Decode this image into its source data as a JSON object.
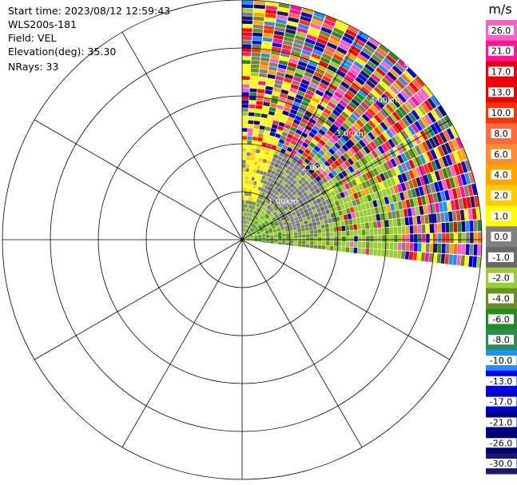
{
  "info": {
    "start_time": "Start time: 2023/08/12 12:59:43",
    "station": "WLS200s-181",
    "field": "Field: VEL",
    "elevation": "Elevation(deg): 35.30",
    "nrays": "NRays: 33"
  },
  "chart_data": {
    "type": "heatmap",
    "projection": "polar-ppi",
    "field": "VEL",
    "unit": "m/s",
    "sector_azimuth_deg": [
      0,
      97
    ],
    "nrays": 33,
    "max_range_km": 5.0,
    "range_ring_labels": [
      "1.00km",
      "2.00km",
      "3.00km",
      "4.00km",
      "5.00km"
    ],
    "colorbar": {
      "title": "m/s",
      "ticks": [
        "26.0",
        "21.0",
        "17.0",
        "13.0",
        "10.0",
        "8.0",
        "6.0",
        "4.0",
        "2.0",
        "1.0",
        "0.0",
        "-1.0",
        "-2.0",
        "-4.0",
        "-6.0",
        "-8.0",
        "-10.0",
        "-13.0",
        "-17.0",
        "-21.0",
        "-26.0",
        "-30.0"
      ],
      "colors": [
        "#ff5fc8",
        "#ff1493",
        "#e8000f",
        "#f00000",
        "#ff3300",
        "#ff6a3c",
        "#ff8c33",
        "#ffa500",
        "#ffcc00",
        "#ffff00",
        "#808080",
        "#696969",
        "#9acd32",
        "#6b8e23",
        "#228b22",
        "#2e8b57",
        "#1e90ff",
        "#0000ff",
        "#0000cd",
        "#00008b",
        "#000070",
        "#191970"
      ]
    },
    "velocity_pattern": [
      {
        "range_km": [
          0.0,
          0.8
        ],
        "dominant": "-2.0 to -6.0 (green), 0.0 (gray)"
      },
      {
        "range_km": [
          0.8,
          2.0
        ],
        "dominant": "0.0 (gray), 2.0 to 4.0 (yellow) near north"
      },
      {
        "range_km": [
          2.0,
          3.5
        ],
        "dominant": "-2.0 (green) east, mixed colors north"
      },
      {
        "range_km": [
          3.5,
          5.0
        ],
        "dominant": "noise: all colors"
      }
    ]
  }
}
